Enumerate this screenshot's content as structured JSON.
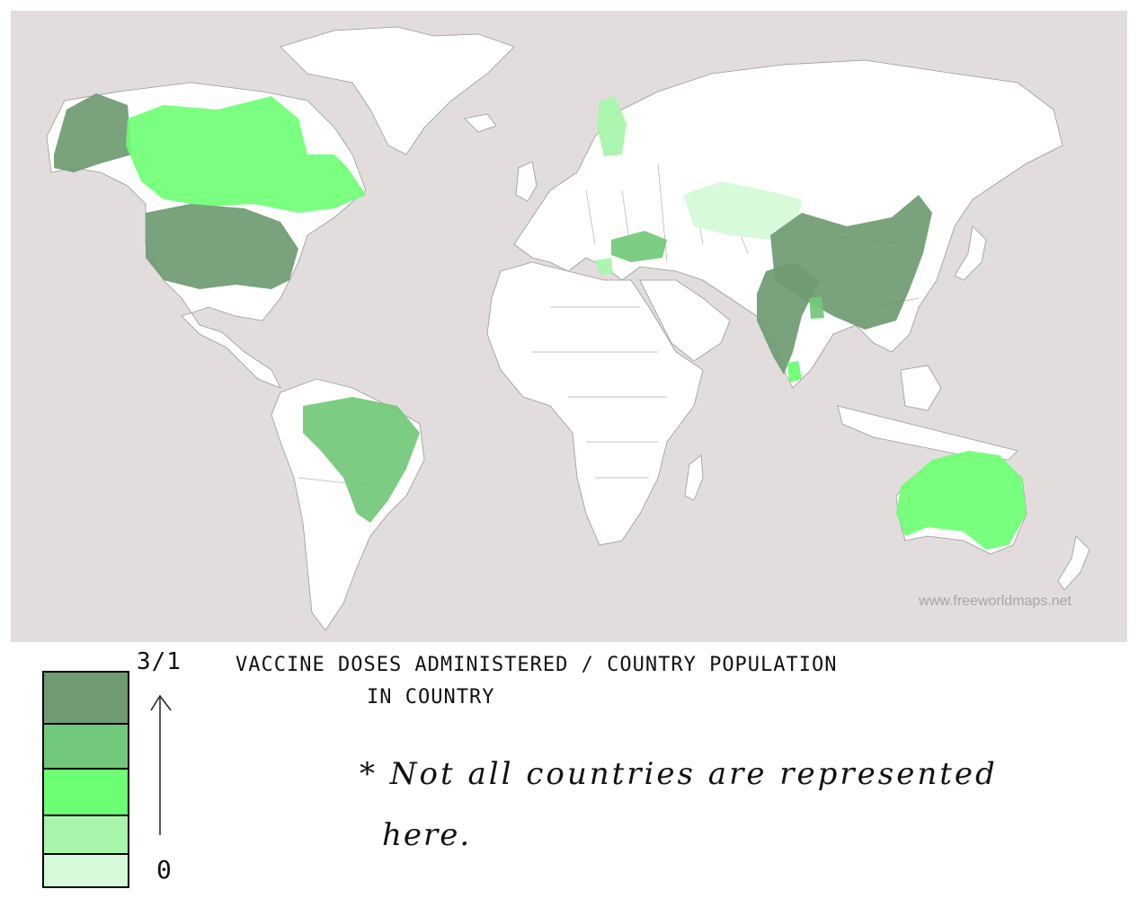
{
  "map": {
    "watermark": "www.freeworldmaps.net",
    "colors": {
      "ocean": "#e2dcdc",
      "land": "#ffffff",
      "level_5": "#6f9a72",
      "level_4": "#72c87a",
      "level_3": "#6dff73",
      "level_2": "#a9f5ad",
      "level_1": "#d6fad9"
    },
    "shaded_countries": [
      {
        "name": "Alaska (USA)",
        "level": 5
      },
      {
        "name": "Canada",
        "level": 3
      },
      {
        "name": "United States",
        "level": 5
      },
      {
        "name": "Brazil",
        "level": 4
      },
      {
        "name": "Finland",
        "level": 2
      },
      {
        "name": "Turkey",
        "level": 4
      },
      {
        "name": "Greece",
        "level": 2
      },
      {
        "name": "Kazakhstan",
        "level": 1
      },
      {
        "name": "China",
        "level": 5
      },
      {
        "name": "India",
        "level": 5
      },
      {
        "name": "Bangladesh",
        "level": 4
      },
      {
        "name": "Sri Lanka",
        "level": 3
      },
      {
        "name": "Australia",
        "level": 3
      }
    ]
  },
  "legend": {
    "max_label": "3/1",
    "min_label": "0",
    "title_line1": "VACCINE DOSES ADMINISTERED / COUNTRY POPULATION",
    "title_line2": "IN COUNTRY",
    "note_line1": "* Not all countries are represented",
    "note_line2": "here."
  }
}
